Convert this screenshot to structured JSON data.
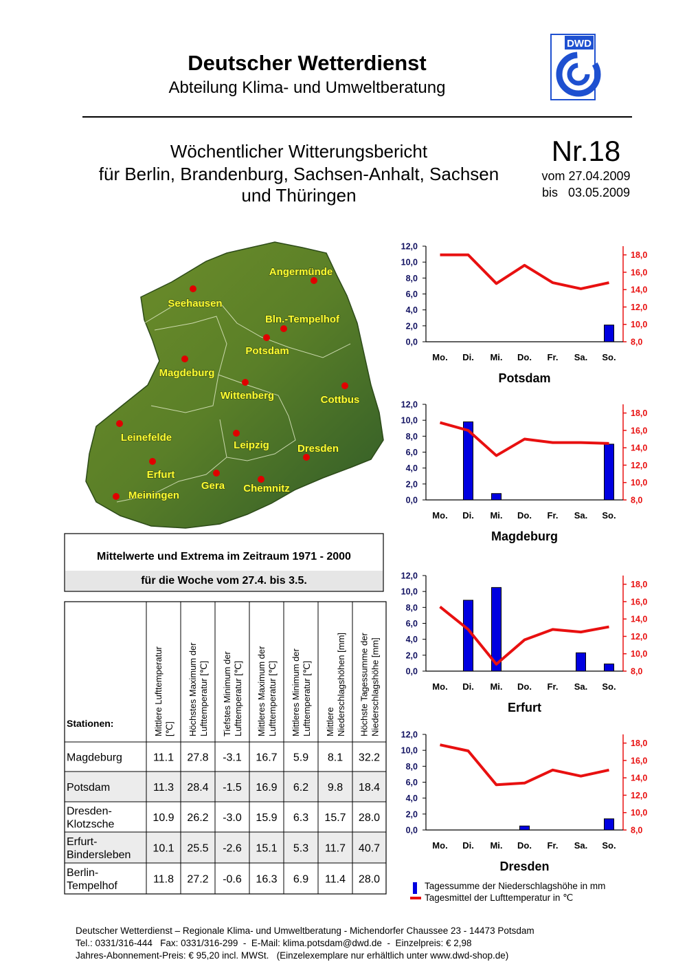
{
  "header": {
    "title": "Deutscher Wetterdienst",
    "subtitle": "Abteilung Klima- und Umweltberatung",
    "logo": "DWD"
  },
  "report": {
    "title_lines": [
      "Wöchentlicher Witterungsbericht",
      "für Berlin, Brandenburg, Sachsen-Anhalt, Sachsen",
      "und Thüringen"
    ],
    "number": "Nr.18",
    "from": "vom 27.04.2009",
    "to": "bis   03.05.2009"
  },
  "map": {
    "cities": [
      "Angermünde",
      "Seehausen",
      "Bln.-Tempelhof",
      "Potsdam",
      "Magdeburg",
      "Wittenberg",
      "Cottbus",
      "Leinefelde",
      "Leipzig",
      "Dresden",
      "Erfurt",
      "Gera",
      "Chemnitz",
      "Meiningen"
    ]
  },
  "climate_box": {
    "title": "Mittelwerte und Extrema im Zeitraum 1971 - 2000",
    "subtitle": "für die Woche vom 27.4. bis 3.5."
  },
  "table": {
    "header": [
      [
        "Stationen:"
      ],
      [
        "Mittlere Lufttemperatur",
        "[℃]"
      ],
      [
        "Höchstes Maximum der",
        "Lufttemperatur [℃]"
      ],
      [
        "Tiefstes Minimum der",
        "Lufttemperatur [℃]"
      ],
      [
        "Mittleres Maximum der",
        "Lufttemperatur [℃]"
      ],
      [
        "Mittleres Minimum der",
        "Lufttemperatur [℃]"
      ],
      [
        "Mittlere",
        "Niederschlagshöhen [mm]"
      ],
      [
        "Höchste Tagessumme der",
        "Niederschlagshöhe [mm]"
      ]
    ],
    "rows": [
      [
        [
          "Magdeburg"
        ],
        "11.1",
        "27.8",
        "-3.1",
        "16.7",
        "5.9",
        "8.1",
        "32.2"
      ],
      [
        [
          "Potsdam"
        ],
        "11.3",
        "28.4",
        "-1.5",
        "16.9",
        "6.2",
        "9.8",
        "18.4"
      ],
      [
        [
          "Dresden-",
          "Klotzsche"
        ],
        "10.9",
        "26.2",
        "-3.0",
        "15.9",
        "6.3",
        "15.7",
        "28.0"
      ],
      [
        [
          "Erfurt-",
          "Bindersleben"
        ],
        "10.1",
        "25.5",
        "-2.6",
        "15.1",
        "5.3",
        "11.7",
        "40.7"
      ],
      [
        [
          "Berlin-",
          "Tempelhof"
        ],
        "11.8",
        "27.2",
        "-0.6",
        "16.3",
        "6.9",
        "11.4",
        "28.0"
      ]
    ]
  },
  "chart_data": [
    {
      "type": "bar_line",
      "title": "Potsdam",
      "categories": [
        "Mo.",
        "Di.",
        "Mi.",
        "Do.",
        "Fr.",
        "Sa.",
        "So."
      ],
      "ylim": [
        0,
        12
      ],
      "yticks": [
        {
          "value": 0,
          "label": "0,0"
        },
        {
          "value": 2,
          "label": "2,0"
        },
        {
          "value": 4,
          "label": "4,0"
        },
        {
          "value": 6,
          "label": "6,0"
        },
        {
          "value": 8,
          "label": "8,0"
        },
        {
          "value": 10,
          "label": "10,0"
        },
        {
          "value": 12,
          "label": "12,0"
        }
      ],
      "y2lim": [
        8,
        19
      ],
      "y2ticks": [
        {
          "value": 8,
          "label": "8,0"
        },
        {
          "value": 10,
          "label": "10,0"
        },
        {
          "value": 12,
          "label": "12,0"
        },
        {
          "value": 14,
          "label": "14,0"
        },
        {
          "value": 16,
          "label": "16,0"
        },
        {
          "value": 18,
          "label": "18,0"
        }
      ],
      "series": [
        {
          "type": "bar",
          "color": "#0000e0",
          "values": [
            0,
            0,
            0,
            0,
            0,
            0,
            2.1
          ]
        },
        {
          "type": "line",
          "axis": "y2",
          "color": "#e81010",
          "values": [
            18.0,
            18.0,
            14.7,
            16.8,
            14.8,
            14.1,
            14.8
          ]
        }
      ]
    },
    {
      "type": "bar_line",
      "title": "Magdeburg",
      "categories": [
        "Mo.",
        "Di.",
        "Mi.",
        "Do.",
        "Fr.",
        "Sa.",
        "So."
      ],
      "ylim": [
        0,
        12
      ],
      "yticks": [
        {
          "value": 0,
          "label": "0,0"
        },
        {
          "value": 2,
          "label": "2,0"
        },
        {
          "value": 4,
          "label": "4,0"
        },
        {
          "value": 6,
          "label": "6,0"
        },
        {
          "value": 8,
          "label": "8,0"
        },
        {
          "value": 10,
          "label": "10,0"
        },
        {
          "value": 12,
          "label": "12,0"
        }
      ],
      "y2lim": [
        8,
        19
      ],
      "y2ticks": [
        {
          "value": 8,
          "label": "8,0"
        },
        {
          "value": 10,
          "label": "10,0"
        },
        {
          "value": 12,
          "label": "12,0"
        },
        {
          "value": 14,
          "label": "14,0"
        },
        {
          "value": 16,
          "label": "16,0"
        },
        {
          "value": 18,
          "label": "18,0"
        }
      ],
      "series": [
        {
          "type": "bar",
          "color": "#0000e0",
          "values": [
            0,
            9.8,
            0.8,
            0,
            0,
            0,
            7.0
          ]
        },
        {
          "type": "line",
          "axis": "y2",
          "color": "#e81010",
          "values": [
            16.9,
            16.0,
            13.1,
            15.0,
            14.6,
            14.6,
            14.5
          ]
        }
      ]
    },
    {
      "type": "bar_line",
      "title": "Erfurt",
      "categories": [
        "Mo.",
        "Di.",
        "Mi.",
        "Do.",
        "Fr.",
        "Sa.",
        "So."
      ],
      "ylim": [
        0,
        12
      ],
      "yticks": [
        {
          "value": 0,
          "label": "0,0"
        },
        {
          "value": 2,
          "label": "2,0"
        },
        {
          "value": 4,
          "label": "4,0"
        },
        {
          "value": 6,
          "label": "6,0"
        },
        {
          "value": 8,
          "label": "8,0"
        },
        {
          "value": 10,
          "label": "10,0"
        },
        {
          "value": 12,
          "label": "12,0"
        }
      ],
      "y2lim": [
        8,
        19
      ],
      "y2ticks": [
        {
          "value": 8,
          "label": "8,0"
        },
        {
          "value": 10,
          "label": "10,0"
        },
        {
          "value": 12,
          "label": "12,0"
        },
        {
          "value": 14,
          "label": "14,0"
        },
        {
          "value": 16,
          "label": "16,0"
        },
        {
          "value": 18,
          "label": "18,0"
        }
      ],
      "series": [
        {
          "type": "bar",
          "color": "#0000e0",
          "values": [
            0,
            8.9,
            10.5,
            0,
            0,
            2.3,
            0.9
          ]
        },
        {
          "type": "line",
          "axis": "y2",
          "color": "#e81010",
          "values": [
            15.4,
            12.8,
            8.8,
            11.6,
            12.8,
            12.5,
            13.1
          ]
        }
      ]
    },
    {
      "type": "bar_line",
      "title": "Dresden",
      "categories": [
        "Mo.",
        "Di.",
        "Mi.",
        "Do.",
        "Fr.",
        "Sa.",
        "So."
      ],
      "ylim": [
        0,
        12
      ],
      "yticks": [
        {
          "value": 0,
          "label": "0,0"
        },
        {
          "value": 2,
          "label": "2,0"
        },
        {
          "value": 4,
          "label": "4,0"
        },
        {
          "value": 6,
          "label": "6,0"
        },
        {
          "value": 8,
          "label": "8,0"
        },
        {
          "value": 10,
          "label": "10,0"
        },
        {
          "value": 12,
          "label": "12,0"
        }
      ],
      "y2lim": [
        8,
        19
      ],
      "y2ticks": [
        {
          "value": 8,
          "label": "8,0"
        },
        {
          "value": 10,
          "label": "10,0"
        },
        {
          "value": 12,
          "label": "12,0"
        },
        {
          "value": 14,
          "label": "14,0"
        },
        {
          "value": 16,
          "label": "16,0"
        },
        {
          "value": 18,
          "label": "18,0"
        }
      ],
      "series": [
        {
          "type": "bar",
          "color": "#0000e0",
          "values": [
            0,
            0,
            0,
            0.5,
            0,
            0,
            1.4
          ]
        },
        {
          "type": "line",
          "axis": "y2",
          "color": "#e81010",
          "values": [
            17.8,
            17.1,
            13.2,
            13.4,
            14.9,
            14.2,
            14.9
          ]
        }
      ]
    }
  ],
  "legend": {
    "items": [
      {
        "label": "Tagessumme der Niederschlagshöhe in mm",
        "color": "#0000e0"
      },
      {
        "label": "Tagesmittel der Lufttemperatur in ℃",
        "color": "#e81010"
      }
    ]
  },
  "footer": [
    "Deutscher Wetterdienst – Regionale Klima- und Umweltberatung - Michendorfer Chaussee 23 - 14473 Potsdam",
    "Tel.: 0331/316-444   Fax: 0331/316-299  -  E-Mail: klima.potsdam@dwd.de  -  Einzelpreis: € 2,98",
    "Jahres-Abonnement-Preis: € 95,20 incl. MWSt.   (Einzelexemplare nur erhältlich unter www.dwd-shop.de)"
  ]
}
